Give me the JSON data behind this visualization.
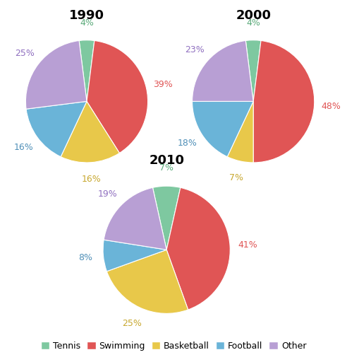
{
  "years": [
    "1990",
    "2000",
    "2010"
  ],
  "slices": {
    "1990": [
      4,
      39,
      16,
      16,
      25
    ],
    "2000": [
      4,
      48,
      7,
      18,
      23
    ],
    "2010": [
      7,
      41,
      25,
      8,
      19
    ]
  },
  "colors": {
    "Tennis": "#7ec8a0",
    "Swimming": "#e05555",
    "Basketball": "#e8c84a",
    "Football": "#6ab4d8",
    "Other": "#b89fd4"
  },
  "sport_order": [
    "Tennis",
    "Swimming",
    "Basketball",
    "Football",
    "Other"
  ],
  "label_colors": {
    "Tennis": "#5baa7a",
    "Swimming": "#e05555",
    "Basketball": "#c8a830",
    "Football": "#5090b8",
    "Other": "#9070c0"
  },
  "figsize": [
    4.92,
    5.12
  ],
  "dpi": 100,
  "title_fontsize": 13,
  "legend_fontsize": 9,
  "pct_fontsize": 9
}
